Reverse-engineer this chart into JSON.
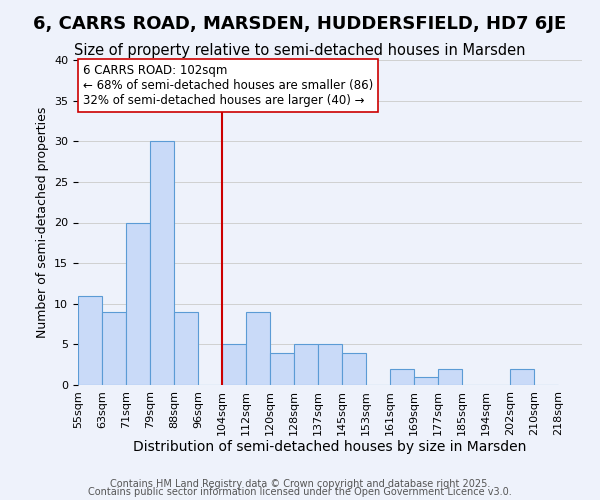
{
  "title": "6, CARRS ROAD, MARSDEN, HUDDERSFIELD, HD7 6JE",
  "subtitle": "Size of property relative to semi-detached houses in Marsden",
  "xlabel": "Distribution of semi-detached houses by size in Marsden",
  "ylabel": "Number of semi-detached properties",
  "bin_labels": [
    "55sqm",
    "63sqm",
    "71sqm",
    "79sqm",
    "88sqm",
    "96sqm",
    "104sqm",
    "112sqm",
    "120sqm",
    "128sqm",
    "137sqm",
    "145sqm",
    "153sqm",
    "161sqm",
    "169sqm",
    "177sqm",
    "185sqm",
    "194sqm",
    "202sqm",
    "210sqm",
    "218sqm"
  ],
  "bar_heights": [
    11,
    9,
    20,
    30,
    9,
    0,
    5,
    9,
    4,
    5,
    5,
    4,
    0,
    2,
    1,
    2,
    0,
    0,
    2,
    0
  ],
  "bar_color": "#c9daf8",
  "bar_edge_color": "#5b9bd5",
  "grid_color": "#d0d0d0",
  "background_color": "#eef2fb",
  "vline_color": "#cc0000",
  "vline_label_index": 6,
  "annotation_text": "6 CARRS ROAD: 102sqm\n← 68% of semi-detached houses are smaller (86)\n32% of semi-detached houses are larger (40) →",
  "annotation_box_edge_color": "#cc0000",
  "footer_line1": "Contains HM Land Registry data © Crown copyright and database right 2025.",
  "footer_line2": "Contains public sector information licensed under the Open Government Licence v3.0.",
  "ylim": [
    0,
    40
  ],
  "title_fontsize": 13,
  "subtitle_fontsize": 10.5,
  "xlabel_fontsize": 10,
  "ylabel_fontsize": 9,
  "tick_fontsize": 8,
  "annotation_fontsize": 8.5,
  "footer_fontsize": 7
}
